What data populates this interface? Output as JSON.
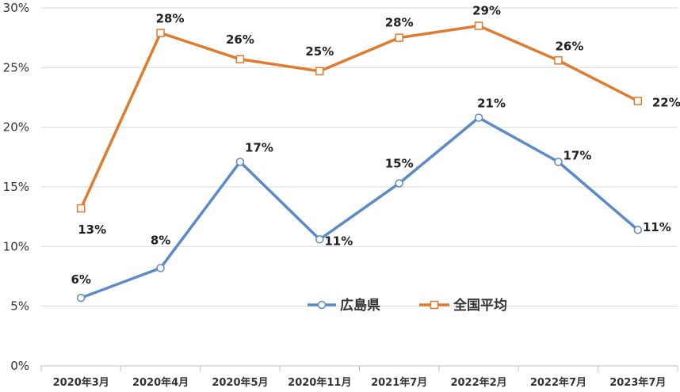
{
  "chart_data": {
    "type": "line",
    "categories": [
      "2020年3月",
      "2020年4月",
      "2020年5月",
      "2020年11月",
      "2021年7月",
      "2022年2月",
      "2022年7月",
      "2023年7月"
    ],
    "ylim": [
      0,
      30
    ],
    "yticks": [
      "0%",
      "5%",
      "10%",
      "15%",
      "20%",
      "25%",
      "30%"
    ],
    "y_unit": "%",
    "grid": true,
    "legend_position": "bottom-right inside plot",
    "series": [
      {
        "name": "広島県",
        "color": "#5b8ac8",
        "marker": "circle",
        "values": [
          5.7,
          8.2,
          17.1,
          10.6,
          15.3,
          20.8,
          17.1,
          11.4
        ],
        "labels": [
          "6%",
          "8%",
          "17%",
          "11%",
          "15%",
          "21%",
          "17%",
          "11%"
        ]
      },
      {
        "name": "全国平均",
        "color": "#e07b2e",
        "marker": "square",
        "values": [
          13.2,
          27.9,
          25.7,
          24.7,
          27.5,
          28.5,
          25.6,
          22.2
        ],
        "labels": [
          "13%",
          "28%",
          "26%",
          "25%",
          "28%",
          "29%",
          "26%",
          "22%"
        ]
      }
    ]
  }
}
